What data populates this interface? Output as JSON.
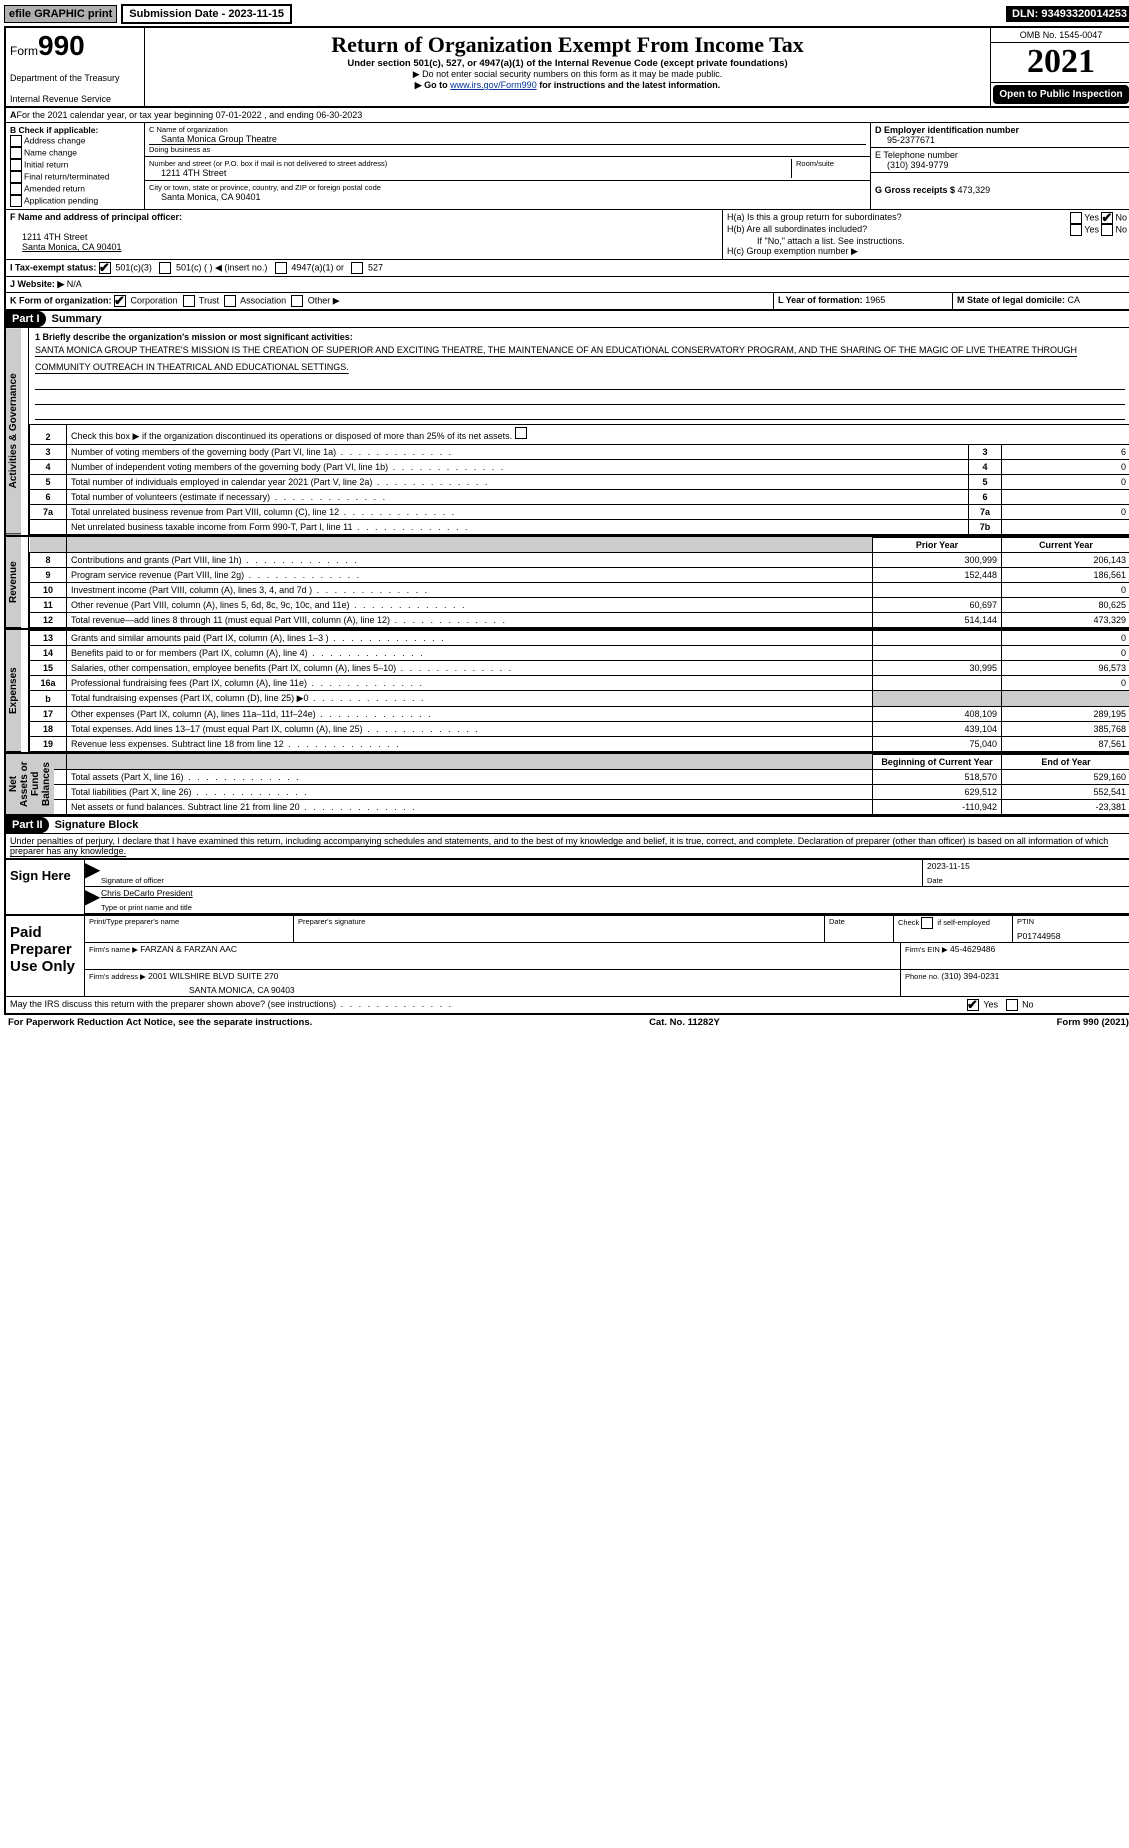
{
  "meta": {
    "efile": "efile GRAPHIC print",
    "submission_label": "Submission Date - 2023-11-15",
    "dln": "DLN: 93493320014253",
    "omb": "OMB No. 1545-0047",
    "year": "2021",
    "open_public": "Open to Public Inspection",
    "form_prefix": "Form",
    "form_no": "990",
    "title": "Return of Organization Exempt From Income Tax",
    "subtitle": "Under section 501(c), 527, or 4947(a)(1) of the Internal Revenue Code (except private foundations)",
    "ssn_note": "▶ Do not enter social security numbers on this form as it may be made public.",
    "goto": "▶ Go to ",
    "goto_link": "www.irs.gov/Form990",
    "goto_tail": " for instructions and the latest information.",
    "dept": "Department of the Treasury",
    "irs": "Internal Revenue Service"
  },
  "a": {
    "prefix": "A",
    "text": " For the 2021 calendar year, or tax year beginning 07-01-2022     , and ending 06-30-2023"
  },
  "b": {
    "header": "B Check if applicable:",
    "items": [
      "Address change",
      "Name change",
      "Initial return",
      "Final return/terminated",
      "Amended return",
      "Application pending"
    ]
  },
  "c": {
    "name_label": "C Name of organization",
    "name": "Santa Monica Group Theatre",
    "dba": "Doing business as",
    "street_label": "Number and street (or P.O. box if mail is not delivered to street address)",
    "room": "Room/suite",
    "street": "1211 4TH Street",
    "city_label": "City or town, state or province, country, and ZIP or foreign postal code",
    "city": "Santa Monica, CA  90401"
  },
  "d": {
    "ein_label": "D Employer identification number",
    "ein": "95-2377671",
    "phone_label": "E Telephone number",
    "phone": "(310) 394-9779",
    "gross_label": "G Gross receipts $ ",
    "gross": "473,329"
  },
  "f": {
    "label": "F  Name and address of principal officer:",
    "addr1": "1211 4TH Street",
    "addr2": "Santa Monica, CA  90401"
  },
  "h": {
    "a": "H(a)  Is this a group return for subordinates?",
    "b": "H(b)  Are all subordinates included?",
    "note": "If \"No,\" attach a list. See instructions.",
    "c": "H(c)  Group exemption number ▶",
    "yes": "Yes",
    "no": "No"
  },
  "i": {
    "label": "I  Tax-exempt status:",
    "opts": [
      "501(c)(3)",
      "501(c) (   ) ◀ (insert no.)",
      "4947(a)(1) or",
      "527"
    ]
  },
  "j": {
    "label": "J  Website: ▶",
    "val": "  N/A"
  },
  "k": {
    "label": "K Form of organization:",
    "opts": [
      "Corporation",
      "Trust",
      "Association",
      "Other ▶"
    ]
  },
  "l": {
    "label": "L Year of formation: ",
    "val": "1965"
  },
  "m": {
    "label": "M State of legal domicile: ",
    "val": "CA"
  },
  "part1": {
    "hdr": "Part I",
    "title": "Summary"
  },
  "part2": {
    "hdr": "Part II",
    "title": "Signature Block"
  },
  "vtabs": {
    "gov": "Activities & Governance",
    "rev": "Revenue",
    "exp": "Expenses",
    "net": "Net Assets or Fund Balances"
  },
  "summary": {
    "l1": "1  Briefly describe the organization's mission or most significant activities:",
    "mission": "SANTA MONICA GROUP THEATRE'S MISSION IS THE CREATION OF SUPERIOR AND EXCITING THEATRE, THE MAINTENANCE OF AN EDUCATIONAL CONSERVATORY PROGRAM, AND THE SHARING OF THE MAGIC OF LIVE THEATRE THROUGH COMMUNITY OUTREACH IN THEATRICAL AND EDUCATIONAL SETTINGS.",
    "l2": "Check this box ▶      if the organization discontinued its operations or disposed of more than 25% of its net assets.",
    "rows_gov": [
      {
        "n": "3",
        "t": "Number of voting members of the governing body (Part VI, line 1a)",
        "b": "3",
        "v": "6"
      },
      {
        "n": "4",
        "t": "Number of independent voting members of the governing body (Part VI, line 1b)",
        "b": "4",
        "v": "0"
      },
      {
        "n": "5",
        "t": "Total number of individuals employed in calendar year 2021 (Part V, line 2a)",
        "b": "5",
        "v": "0"
      },
      {
        "n": "6",
        "t": "Total number of volunteers (estimate if necessary)",
        "b": "6",
        "v": ""
      },
      {
        "n": "7a",
        "t": "Total unrelated business revenue from Part VIII, column (C), line 12",
        "b": "7a",
        "v": "0"
      },
      {
        "n": "",
        "t": "Net unrelated business taxable income from Form 990-T, Part I, line 11",
        "b": "7b",
        "v": ""
      }
    ],
    "col_prior": "Prior Year",
    "col_current": "Current Year",
    "rows_rev": [
      {
        "n": "8",
        "t": "Contributions and grants (Part VIII, line 1h)",
        "p": "300,999",
        "c": "206,143"
      },
      {
        "n": "9",
        "t": "Program service revenue (Part VIII, line 2g)",
        "p": "152,448",
        "c": "186,561"
      },
      {
        "n": "10",
        "t": "Investment income (Part VIII, column (A), lines 3, 4, and 7d )",
        "p": "",
        "c": "0"
      },
      {
        "n": "11",
        "t": "Other revenue (Part VIII, column (A), lines 5, 6d, 8c, 9c, 10c, and 11e)",
        "p": "60,697",
        "c": "80,625"
      },
      {
        "n": "12",
        "t": "Total revenue—add lines 8 through 11 (must equal Part VIII, column (A), line 12)",
        "p": "514,144",
        "c": "473,329"
      }
    ],
    "rows_exp": [
      {
        "n": "13",
        "t": "Grants and similar amounts paid (Part IX, column (A), lines 1–3 )",
        "p": "",
        "c": "0"
      },
      {
        "n": "14",
        "t": "Benefits paid to or for members (Part IX, column (A), line 4)",
        "p": "",
        "c": "0"
      },
      {
        "n": "15",
        "t": "Salaries, other compensation, employee benefits (Part IX, column (A), lines 5–10)",
        "p": "30,995",
        "c": "96,573"
      },
      {
        "n": "16a",
        "t": "Professional fundraising fees (Part IX, column (A), line 11e)",
        "p": "",
        "c": "0"
      },
      {
        "n": "b",
        "t": "Total fundraising expenses (Part IX, column (D), line 25) ▶0",
        "p": "shade",
        "c": "shade"
      },
      {
        "n": "17",
        "t": "Other expenses (Part IX, column (A), lines 11a–11d, 11f–24e)",
        "p": "408,109",
        "c": "289,195"
      },
      {
        "n": "18",
        "t": "Total expenses. Add lines 13–17 (must equal Part IX, column (A), line 25)",
        "p": "439,104",
        "c": "385,768"
      },
      {
        "n": "19",
        "t": "Revenue less expenses. Subtract line 18 from line 12",
        "p": "75,040",
        "c": "87,561"
      }
    ],
    "col_begin": "Beginning of Current Year",
    "col_end": "End of Year",
    "rows_net": [
      {
        "n": "20",
        "t": "Total assets (Part X, line 16)",
        "p": "518,570",
        "c": "529,160"
      },
      {
        "n": "21",
        "t": "Total liabilities (Part X, line 26)",
        "p": "629,512",
        "c": "552,541"
      },
      {
        "n": "22",
        "t": "Net assets or fund balances. Subtract line 21 from line 20",
        "p": "-110,942",
        "c": "-23,381"
      }
    ]
  },
  "sig": {
    "perjury": "Under penalties of perjury, I declare that I have examined this return, including accompanying schedules and statements, and to the best of my knowledge and belief, it is true, correct, and complete. Declaration of preparer (other than officer) is based on all information of which preparer has any knowledge.",
    "sign_here": "Sign Here",
    "sig_officer": "Signature of officer",
    "date": "Date",
    "sig_date": "2023-11-15",
    "name": "Chris DeCarlo  President",
    "name_label": "Type or print name and title",
    "paid": "Paid Preparer Use Only",
    "prep_name_h": "Print/Type preparer's name",
    "prep_sig_h": "Preparer's signature",
    "date_h": "Date",
    "check_self": "Check          if self-employed",
    "ptin_h": "PTIN",
    "ptin": "P01744958",
    "firm_name_l": "Firm's name     ▶",
    "firm_name": "FARZAN & FARZAN AAC",
    "firm_ein_l": "Firm's EIN ▶",
    "firm_ein": "45-4629486",
    "firm_addr_l": "Firm's address ▶",
    "firm_addr1": "2001 WILSHIRE BLVD SUITE 270",
    "firm_addr2": "SANTA MONICA, CA  90403",
    "firm_phone_l": "Phone no. ",
    "firm_phone": "(310) 394-0231",
    "may_irs": "May the IRS discuss this return with the preparer shown above? (see instructions)"
  },
  "footer": {
    "pra": "For Paperwork Reduction Act Notice, see the separate instructions.",
    "cat": "Cat. No. 11282Y",
    "form": "Form 990 (2021)"
  }
}
